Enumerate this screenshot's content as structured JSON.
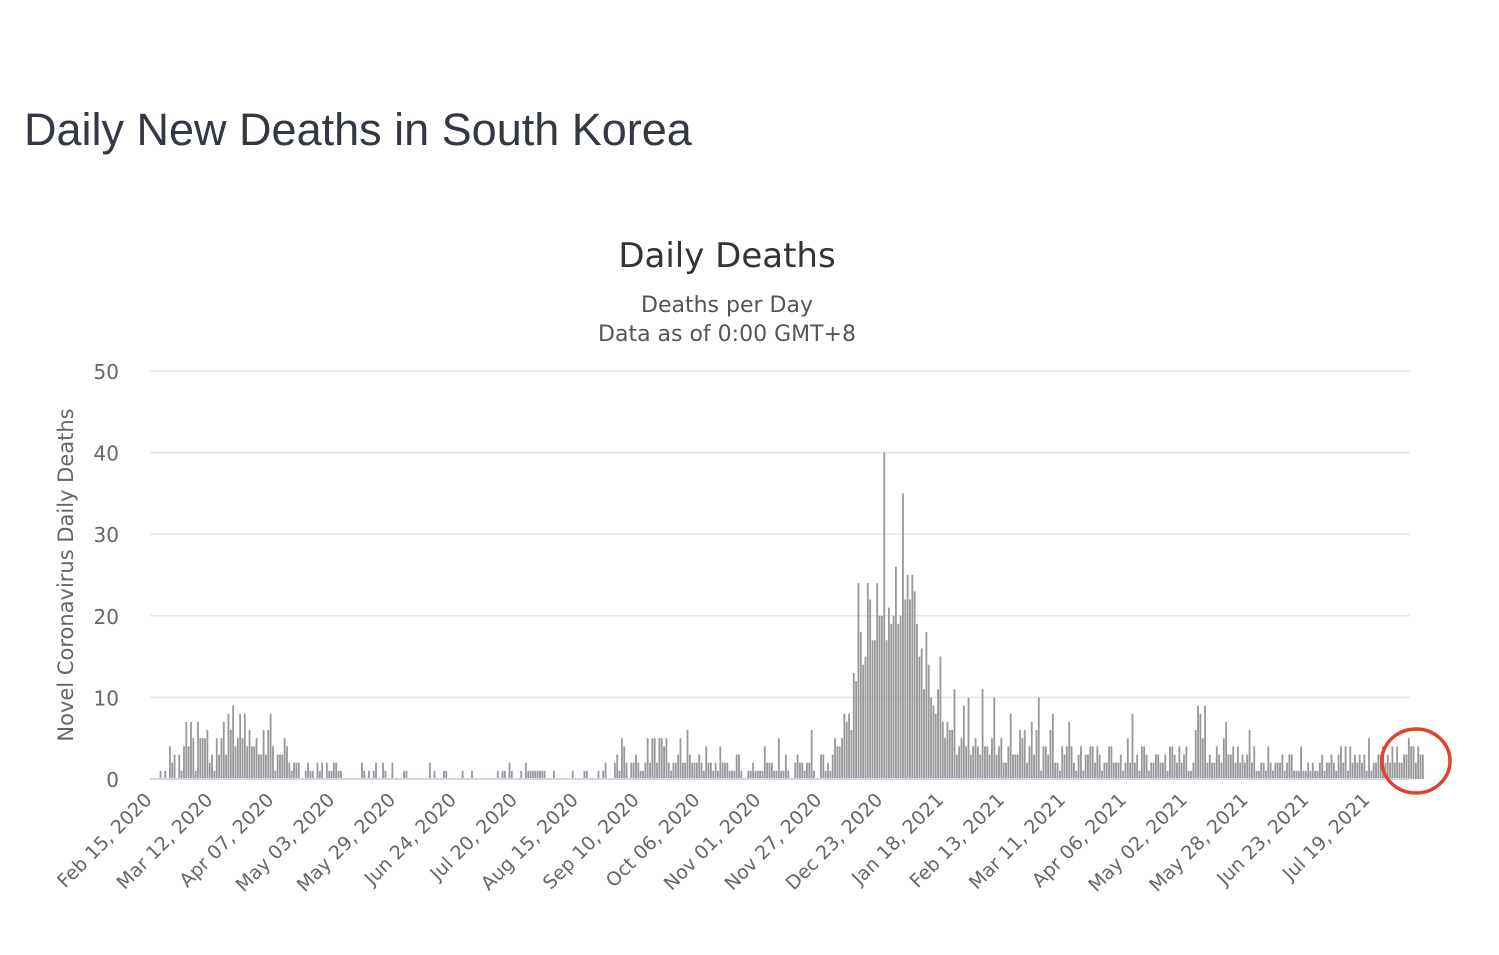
{
  "page": {
    "heading": "Daily New Deaths in South Korea"
  },
  "colors": {
    "bar": "#999999",
    "grid": "#e6e6e6",
    "axis_line": "#ccd6eb",
    "text": "#333333",
    "axis_text": "#666666",
    "highlight_circle": "#e2412c"
  },
  "chart_data": {
    "type": "bar",
    "title": "Daily Deaths",
    "subtitle_lines": [
      "Deaths per Day",
      "Data as of 0:00 GMT+8"
    ],
    "xlabel": "",
    "ylabel": "Novel Coronavirus Daily Deaths",
    "ylim": [
      0,
      50
    ],
    "yticks": [
      "0",
      "10",
      "20",
      "30",
      "40",
      "50"
    ],
    "grid": true,
    "legend": "none",
    "x_start": "Feb 15, 2020",
    "x_end": "Aug 05, 2021",
    "x_tick_labels": [
      "Feb 15, 2020",
      "Mar 12, 2020",
      "Apr 07, 2020",
      "May 03, 2020",
      "May 29, 2020",
      "Jun 24, 2020",
      "Jul 20, 2020",
      "Aug 15, 2020",
      "Sep 10, 2020",
      "Oct 06, 2020",
      "Nov 01, 2020",
      "Nov 27, 2020",
      "Dec 23, 2020",
      "Jan 18, 2021",
      "Feb 13, 2021",
      "Mar 11, 2021",
      "Apr 06, 2021",
      "May 02, 2021",
      "May 28, 2021",
      "Jun 23, 2021",
      "Jul 19, 2021"
    ],
    "annotations": [
      {
        "type": "circle",
        "from": "Jul 25, 2021",
        "to": "Aug 05, 2021",
        "color": "#e2412c"
      }
    ],
    "values": [
      0,
      0,
      0,
      0,
      1,
      0,
      1,
      0,
      4,
      2,
      3,
      0,
      3,
      1,
      4,
      7,
      4,
      7,
      5,
      1,
      7,
      5,
      5,
      5,
      6,
      2,
      3,
      1,
      5,
      3,
      5,
      7,
      3,
      8,
      6,
      9,
      4,
      5,
      8,
      5,
      8,
      4,
      6,
      4,
      4,
      5,
      3,
      3,
      6,
      3,
      6,
      8,
      4,
      1,
      3,
      3,
      3,
      5,
      4,
      2,
      1,
      2,
      2,
      2,
      0,
      0,
      1,
      2,
      1,
      1,
      0,
      2,
      1,
      2,
      0,
      2,
      1,
      1,
      2,
      2,
      1,
      1,
      0,
      0,
      0,
      0,
      0,
      0,
      0,
      0,
      2,
      1,
      0,
      1,
      0,
      1,
      2,
      0,
      0,
      2,
      1,
      0,
      0,
      2,
      0,
      0,
      0,
      0,
      1,
      1,
      0,
      0,
      0,
      0,
      0,
      0,
      0,
      0,
      0,
      2,
      0,
      1,
      0,
      0,
      0,
      1,
      1,
      0,
      0,
      0,
      0,
      0,
      0,
      1,
      0,
      0,
      0,
      1,
      0,
      0,
      0,
      0,
      0,
      0,
      0,
      0,
      0,
      0,
      1,
      0,
      1,
      1,
      0,
      2,
      1,
      0,
      0,
      0,
      1,
      0,
      2,
      1,
      1,
      1,
      1,
      1,
      1,
      1,
      1,
      0,
      0,
      0,
      1,
      0,
      0,
      0,
      0,
      0,
      0,
      0,
      1,
      0,
      0,
      0,
      0,
      1,
      1,
      0,
      0,
      0,
      0,
      1,
      0,
      1,
      2,
      0,
      0,
      0,
      2,
      3,
      1,
      5,
      4,
      2,
      0,
      2,
      2,
      3,
      2,
      1,
      1,
      2,
      5,
      2,
      5,
      5,
      2,
      5,
      5,
      4,
      5,
      2,
      1,
      2,
      2,
      3,
      5,
      2,
      2,
      6,
      3,
      2,
      2,
      2,
      3,
      2,
      1,
      4,
      2,
      2,
      1,
      2,
      1,
      4,
      2,
      2,
      2,
      1,
      1,
      1,
      3,
      3,
      1,
      0,
      0,
      1,
      1,
      2,
      1,
      1,
      1,
      1,
      4,
      2,
      2,
      2,
      1,
      1,
      5,
      1,
      1,
      3,
      1,
      0,
      0,
      2,
      3,
      2,
      2,
      1,
      2,
      2,
      6,
      1,
      0,
      0,
      3,
      3,
      1,
      2,
      1,
      3,
      5,
      4,
      4,
      5,
      8,
      7,
      8,
      6,
      13,
      12,
      24,
      18,
      14,
      15,
      24,
      22,
      17,
      17,
      24,
      20,
      20,
      40,
      17,
      21,
      19,
      20,
      26,
      19,
      20,
      35,
      22,
      25,
      22,
      25,
      23,
      19,
      15,
      16,
      11,
      18,
      14,
      10,
      9,
      8,
      11,
      15,
      7,
      5,
      7,
      6,
      6,
      11,
      3,
      4,
      5,
      9,
      4,
      10,
      3,
      4,
      5,
      4,
      3,
      11,
      4,
      4,
      3,
      5,
      10,
      3,
      4,
      5,
      2,
      2,
      4,
      8,
      3,
      3,
      3,
      6,
      5,
      6,
      2,
      4,
      7,
      3,
      6,
      10,
      1,
      4,
      4,
      3,
      6,
      8,
      2,
      2,
      1,
      4,
      3,
      4,
      7,
      4,
      2,
      1,
      3,
      4,
      1,
      3,
      3,
      4,
      4,
      2,
      4,
      3,
      1,
      2,
      2,
      4,
      4,
      2,
      2,
      2,
      3,
      1,
      2,
      5,
      2,
      8,
      2,
      3,
      1,
      4,
      4,
      3,
      1,
      2,
      2,
      3,
      3,
      2,
      2,
      3,
      1,
      4,
      4,
      3,
      2,
      4,
      2,
      3,
      4,
      1,
      1,
      2,
      6,
      9,
      8,
      5,
      9,
      2,
      3,
      2,
      2,
      4,
      3,
      2,
      5,
      7,
      3,
      3,
      4,
      2,
      4,
      2,
      3,
      2,
      3,
      6,
      2,
      4,
      1,
      1,
      2,
      2,
      1,
      4,
      2,
      1,
      2,
      2,
      2,
      3,
      1,
      2,
      3,
      3,
      1,
      1,
      1,
      4,
      1,
      1,
      2,
      1,
      2,
      1,
      1,
      2,
      3,
      1,
      2,
      2,
      3,
      2,
      1,
      3,
      4,
      2,
      4,
      1,
      4,
      2,
      3,
      2,
      3,
      2,
      3,
      1,
      5,
      1,
      2,
      2,
      3,
      3,
      4,
      2,
      3,
      2,
      4,
      2,
      4,
      2,
      2,
      3,
      3,
      5,
      4,
      4,
      2,
      4,
      3,
      3
    ]
  }
}
